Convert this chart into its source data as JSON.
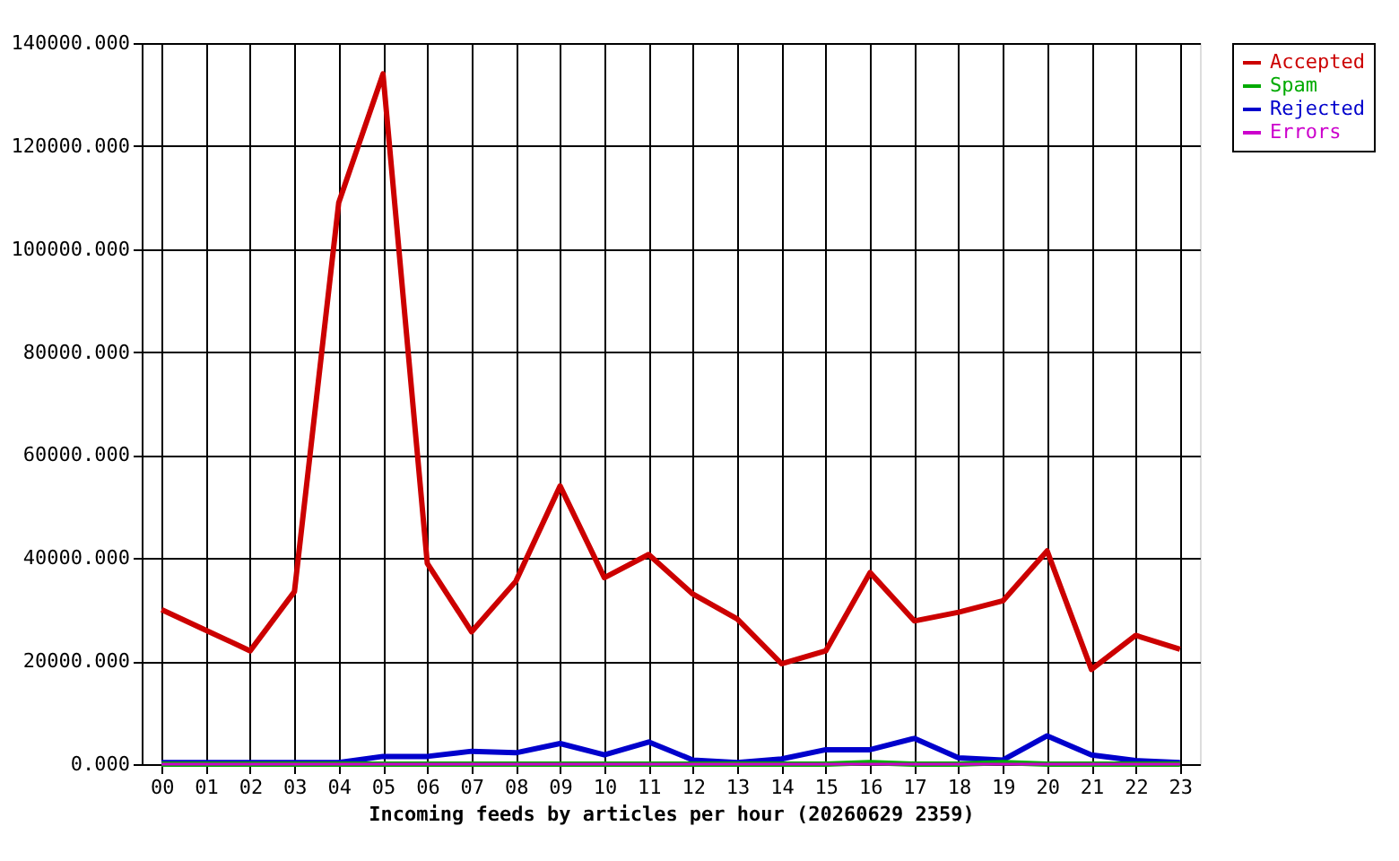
{
  "chart_data": {
    "type": "line",
    "xlabel": "Incoming feeds by articles per hour (20260629 2359)",
    "categories": [
      "00",
      "01",
      "02",
      "03",
      "04",
      "05",
      "06",
      "07",
      "08",
      "09",
      "10",
      "11",
      "12",
      "13",
      "14",
      "15",
      "16",
      "17",
      "18",
      "19",
      "20",
      "21",
      "22",
      "23"
    ],
    "series": [
      {
        "name": "Accepted",
        "color": "#cc0000",
        "values": [
          30000,
          26000,
          22000,
          33500,
          109000,
          134000,
          39000,
          25700,
          35500,
          54000,
          36200,
          40700,
          33000,
          28200,
          19500,
          22000,
          37200,
          27800,
          29500,
          31700,
          41400,
          18400,
          25000,
          22300
        ]
      },
      {
        "name": "Spam",
        "color": "#00aa00",
        "values": [
          0,
          0,
          0,
          0,
          0,
          0,
          0,
          0,
          0,
          0,
          0,
          0,
          0,
          0,
          0,
          0,
          300,
          0,
          0,
          300,
          0,
          0,
          0,
          0
        ]
      },
      {
        "name": "Rejected",
        "color": "#0000cc",
        "values": [
          300,
          300,
          300,
          300,
          300,
          1500,
          1500,
          2500,
          2200,
          4000,
          1800,
          4300,
          800,
          300,
          1000,
          2800,
          2800,
          5000,
          1200,
          800,
          5500,
          1800,
          700,
          300
        ]
      },
      {
        "name": "Errors",
        "color": "#cc00cc",
        "values": [
          0,
          0,
          0,
          0,
          0,
          0,
          0,
          0,
          0,
          0,
          0,
          0,
          0,
          0,
          0,
          0,
          0,
          0,
          0,
          0,
          0,
          0,
          0,
          0
        ]
      }
    ],
    "ylim": [
      0,
      140000
    ],
    "yticks": [
      {
        "value": 0,
        "label": "0.000"
      },
      {
        "value": 20000,
        "label": "20000.000"
      },
      {
        "value": 40000,
        "label": "40000.000"
      },
      {
        "value": 60000,
        "label": "60000.000"
      },
      {
        "value": 80000,
        "label": "80000.000"
      },
      {
        "value": 100000,
        "label": "100000.000"
      },
      {
        "value": 120000,
        "label": "120000.000"
      },
      {
        "value": 140000,
        "label": "140000.000"
      }
    ],
    "grid": true,
    "legend": "top right",
    "marker": "none",
    "line_style": "solid"
  }
}
